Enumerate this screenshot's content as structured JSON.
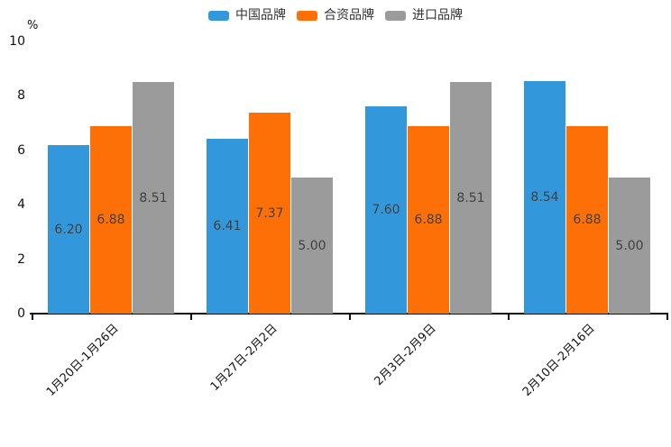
{
  "chart_data": {
    "type": "bar",
    "title": "",
    "xlabel": "",
    "ylabel": "%",
    "ylim": [
      0,
      10
    ],
    "yticks": [
      0,
      2,
      4,
      6,
      8,
      10
    ],
    "grid": false,
    "legend_position": "top-center",
    "value_label_style": "inside-center, 2 decimals, dark gray",
    "categories": [
      "1月20日-1月26日",
      "1月27日-2月2日",
      "2月3日-2月9日",
      "2月10日-2月16日"
    ],
    "series": [
      {
        "name": "中国品牌",
        "color": "#3398DB",
        "values": [
          6.2,
          6.41,
          7.6,
          8.54
        ]
      },
      {
        "name": "合资品牌",
        "color": "#FD7008",
        "values": [
          6.88,
          7.37,
          6.88,
          6.88
        ]
      },
      {
        "name": "进口品牌",
        "color": "#9B9B9B",
        "values": [
          8.51,
          5.0,
          8.51,
          5.0
        ]
      }
    ],
    "axis_color": "#111111",
    "text_color": "#111111",
    "value_text_color": "#404040"
  }
}
